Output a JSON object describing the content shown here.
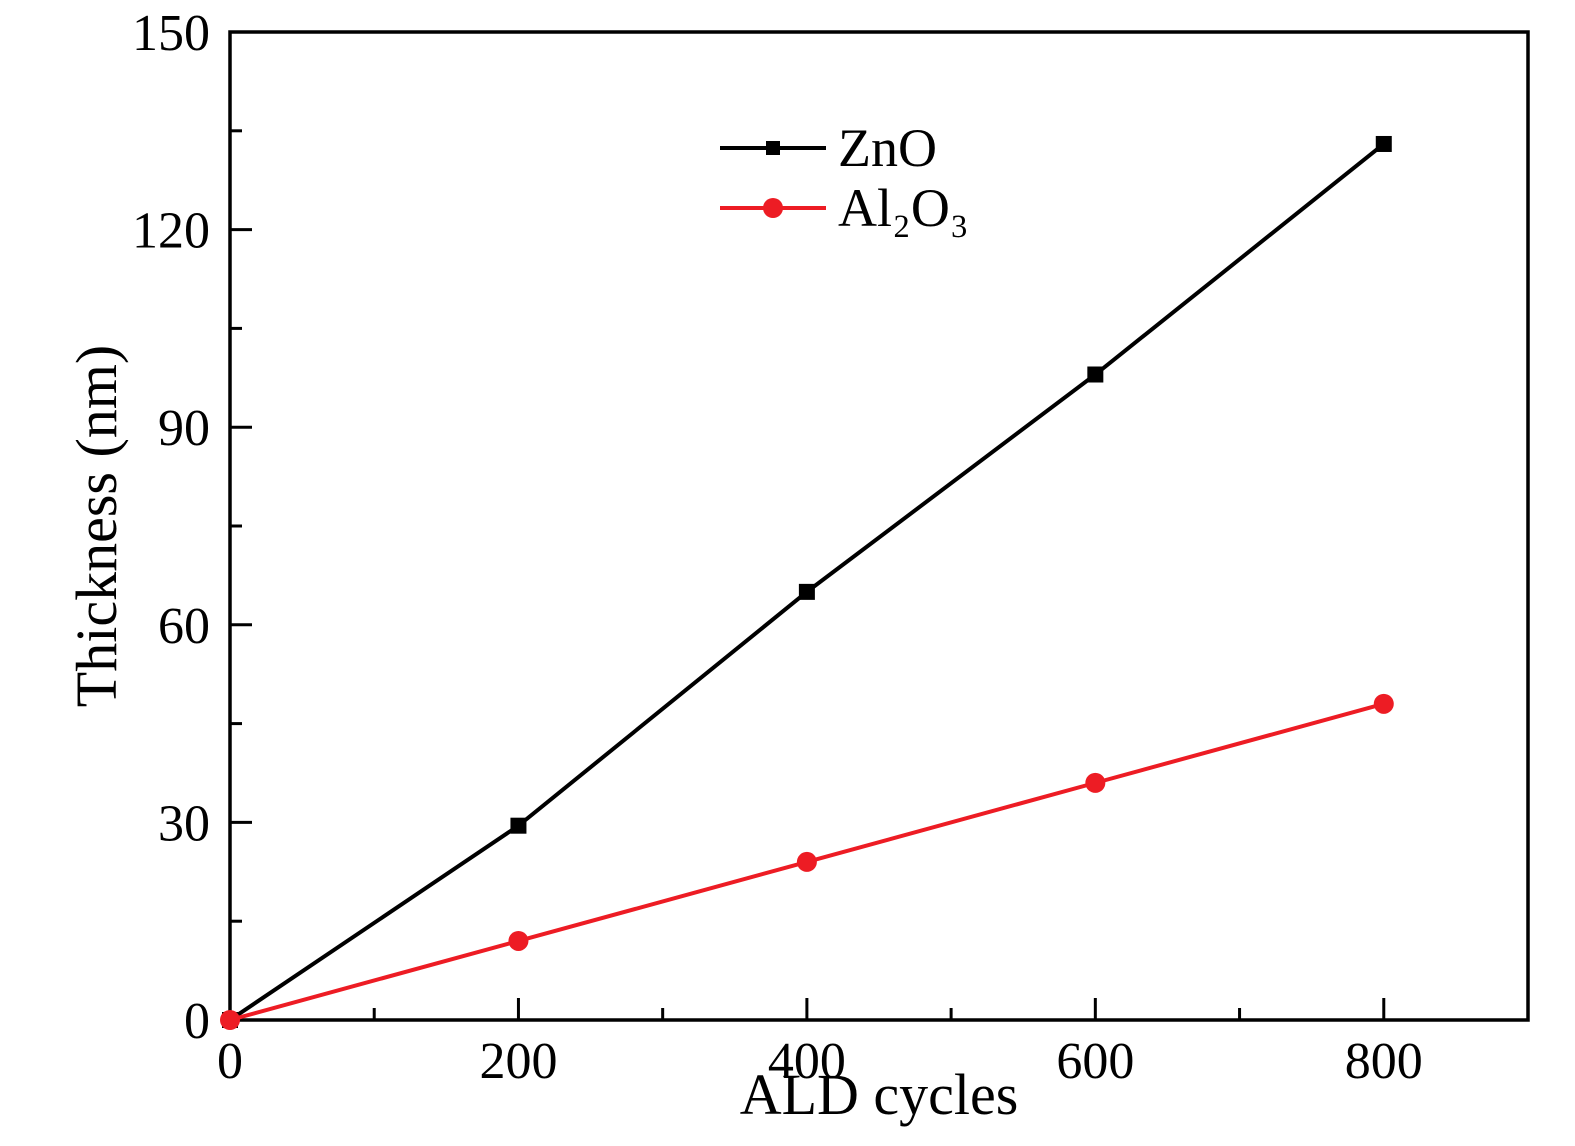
{
  "chart_data": {
    "type": "line",
    "title": "",
    "xlabel": "ALD cycles",
    "ylabel": "Thickness (nm)",
    "xlim": [
      0,
      900
    ],
    "ylim": [
      0,
      150
    ],
    "x_major_ticks": [
      0,
      200,
      400,
      600,
      800
    ],
    "x_minor_step": 100,
    "y_major_ticks": [
      0,
      30,
      60,
      90,
      120,
      150
    ],
    "y_minor_step": 15,
    "grid": false,
    "legend_position": "inside-top-center",
    "frame": "box",
    "axis_color": "#000000",
    "x": [
      0,
      200,
      400,
      600,
      800
    ],
    "series": [
      {
        "name": "ZnO",
        "values": [
          0,
          29.5,
          65,
          98,
          133
        ],
        "color": "#000000",
        "marker": "square"
      },
      {
        "name": "Al₂O₃",
        "values": [
          0,
          12,
          24,
          36,
          48
        ],
        "color": "#ed1c24",
        "marker": "circle"
      }
    ]
  }
}
